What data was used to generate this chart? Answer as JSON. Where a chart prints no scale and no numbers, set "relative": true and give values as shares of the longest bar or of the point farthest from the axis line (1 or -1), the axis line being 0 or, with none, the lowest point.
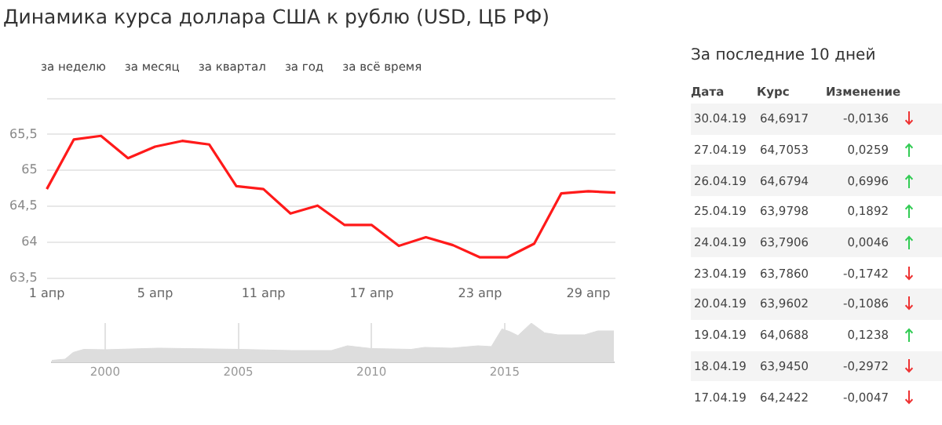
{
  "chart_data": [
    {
      "type": "line",
      "title": "Динамика курса доллара США к рублю (USD, ЦБ РФ)",
      "annotations": [
        "за неделю",
        "за месяц",
        "за квартал",
        "за год",
        "за всё время"
      ],
      "categories": [
        "1 апр",
        null,
        null,
        null,
        "5 апр",
        null,
        null,
        null,
        "11 апр",
        null,
        null,
        null,
        "17 апр",
        null,
        null,
        null,
        "23 апр",
        null,
        null,
        null,
        "29 апр",
        null
      ],
      "series": [
        {
          "color": "#ff1a1a",
          "values": [
            64.74,
            65.43,
            65.48,
            65.17,
            65.33,
            65.41,
            65.36,
            64.78,
            64.74,
            64.4,
            64.51,
            64.24,
            64.24,
            63.95,
            64.07,
            63.96,
            63.79,
            63.79,
            63.98,
            64.68,
            64.71,
            64.69
          ]
        }
      ],
      "ylim": [
        63.5,
        66
      ],
      "yticks": [
        {
          "value": 63.5,
          "label": "63,5"
        },
        64,
        {
          "value": 64.5,
          "label": "64,5"
        },
        65,
        {
          "value": 65.5,
          "label": "65,5"
        },
        {
          "value": 66,
          "label": null
        }
      ],
      "grid": "y",
      "marker": "none",
      "line_style": "solid"
    },
    {
      "type": "area",
      "relative": true,
      "tick_labels": "x",
      "grid": "x",
      "x": [
        1998.0,
        1998.5,
        1998.8,
        1999.2,
        2000,
        2002,
        2003,
        2005,
        2007,
        2008.5,
        2009.1,
        2010,
        2011.5,
        2012,
        2013,
        2014,
        2014.5,
        2014.9,
        2015.2,
        2015.5,
        2016.0,
        2016.5,
        2017,
        2018,
        2018.5,
        2019.1
      ],
      "series": [
        {
          "color": "#dddddd",
          "values": [
            0.05,
            0.08,
            0.25,
            0.33,
            0.32,
            0.36,
            0.35,
            0.33,
            0.3,
            0.3,
            0.42,
            0.35,
            0.33,
            0.38,
            0.36,
            0.42,
            0.4,
            0.85,
            0.78,
            0.68,
            1,
            0.75,
            0.7,
            0.7,
            0.8,
            0.8
          ]
        }
      ],
      "xlim": [
        1998.0,
        2019.1
      ],
      "xticks": [
        2000,
        2005,
        2010,
        2015
      ]
    },
    {
      "type": "other",
      "title": "За последние 10 дней",
      "annotations": [
        "Дата",
        "Курс",
        "Изменение",
        "30.04.19",
        "64,6917",
        "-0,0136",
        "27.04.19",
        "64,7053",
        "0,0259",
        "26.04.19",
        "64,6794",
        "0,6996",
        "25.04.19",
        "63,9798",
        "0,1892",
        "24.04.19",
        "63,7906",
        "0,0046",
        "23.04.19",
        "63,7860",
        "-0,1742",
        "20.04.19",
        "63,9602",
        "-0,1086",
        "19.04.19",
        "64,0688",
        "0,1238",
        "18.04.19",
        "63,9450",
        "-0,2972",
        "17.04.19",
        "64,2422",
        "-0,0047"
      ]
    }
  ]
}
